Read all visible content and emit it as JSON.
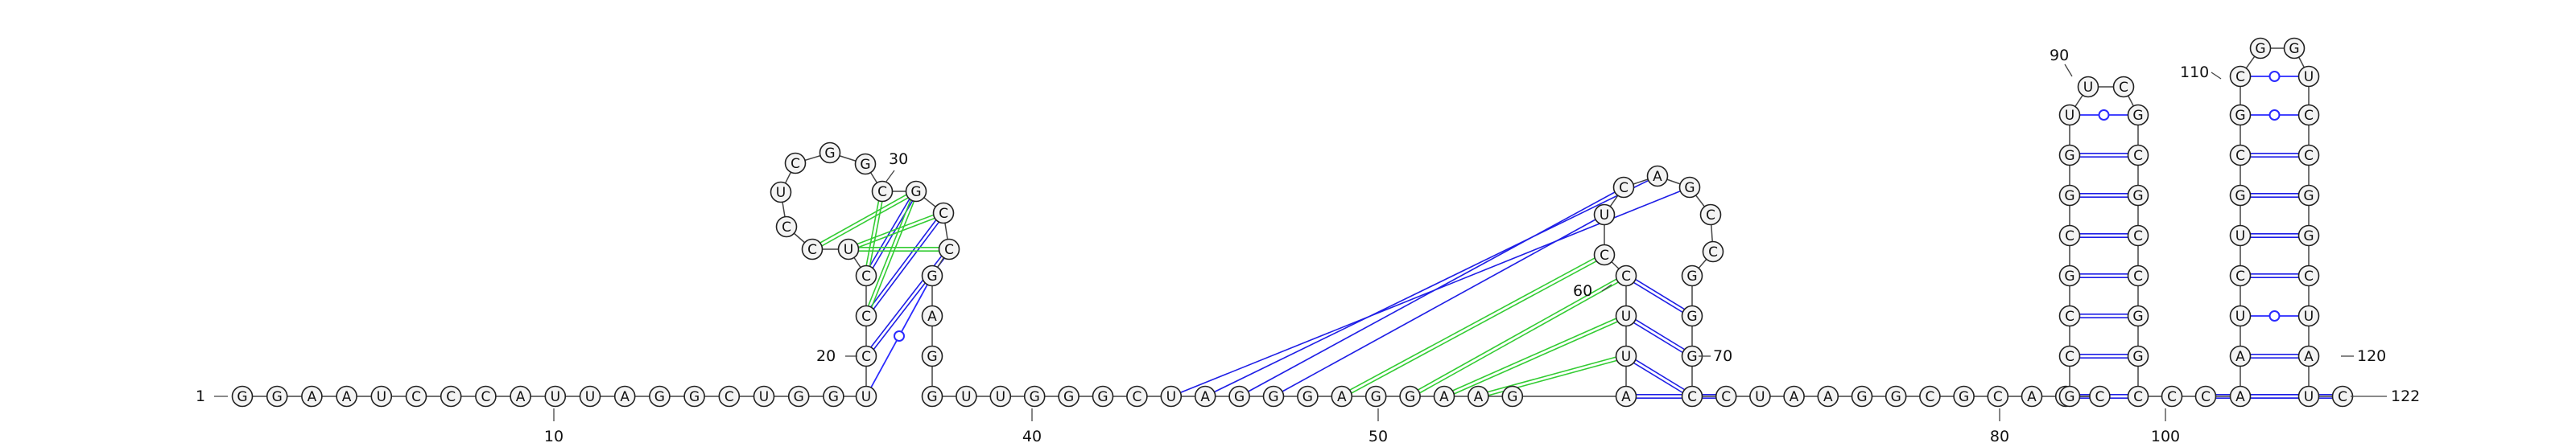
{
  "colors": {
    "canonical_pair": "#1e1ee6",
    "noncanonical_pair": "#2a2aff",
    "pseudoknot_pair": "#33cc33",
    "backbone": "#444444",
    "nucleotide_fill": "#f4f4f4"
  },
  "sequence": "GGAAUCCCAUUAGGCUGGUCCCUCCUCGGCGCCGAGGUUGGGCUAGGGAGGAAGAUUCCUCAGCCGGGCCUAAGGCGCAUCGCCGCGGUUCGCGCCGGCCCAAUCUGCGCGGUCCGGCUAUC",
  "position_labels": [
    "1",
    "10",
    "20",
    "30",
    "40",
    "50",
    "60",
    "70",
    "80",
    "90",
    "100",
    "110",
    "120",
    "122"
  ],
  "base_pairs": [
    {
      "i": 19,
      "j": 34,
      "type": "wobble"
    },
    {
      "i": 20,
      "j": 33,
      "type": "canonical"
    },
    {
      "i": 21,
      "j": 32,
      "type": "canonical"
    },
    {
      "i": 22,
      "j": 31,
      "type": "canonical"
    },
    {
      "i": 55,
      "j": 70,
      "type": "canonical"
    },
    {
      "i": 56,
      "j": 69,
      "type": "canonical"
    },
    {
      "i": 57,
      "j": 68,
      "type": "canonical"
    },
    {
      "i": 58,
      "j": 67,
      "type": "canonical"
    },
    {
      "i": 82,
      "j": 99,
      "type": "canonical"
    },
    {
      "i": 83,
      "j": 98,
      "type": "canonical"
    },
    {
      "i": 84,
      "j": 97,
      "type": "canonical"
    },
    {
      "i": 85,
      "j": 96,
      "type": "canonical"
    },
    {
      "i": 86,
      "j": 95,
      "type": "canonical"
    },
    {
      "i": 87,
      "j": 94,
      "type": "canonical"
    },
    {
      "i": 88,
      "j": 93,
      "type": "canonical"
    },
    {
      "i": 89,
      "j": 92,
      "type": "wobble"
    },
    {
      "i": 101,
      "j": 122,
      "type": "canonical"
    },
    {
      "i": 102,
      "j": 121,
      "type": "canonical"
    },
    {
      "i": 103,
      "j": 120,
      "type": "canonical"
    },
    {
      "i": 104,
      "j": 119,
      "type": "wobble"
    },
    {
      "i": 105,
      "j": 118,
      "type": "canonical"
    },
    {
      "i": 106,
      "j": 117,
      "type": "canonical"
    },
    {
      "i": 107,
      "j": 116,
      "type": "canonical"
    },
    {
      "i": 108,
      "j": 115,
      "type": "canonical"
    },
    {
      "i": 109,
      "j": 114,
      "type": "wobble"
    },
    {
      "i": 110,
      "j": 113,
      "type": "wobble"
    }
  ],
  "pseudoknot_pairs": [
    {
      "i": 21,
      "j": 31
    },
    {
      "i": 22,
      "j": 30
    },
    {
      "i": 23,
      "j": 33
    },
    {
      "i": 23,
      "j": 32
    },
    {
      "i": 24,
      "j": 31
    },
    {
      "i": 49,
      "j": 59
    },
    {
      "i": 51,
      "j": 58
    },
    {
      "i": 52,
      "j": 57
    },
    {
      "i": 53,
      "j": 56
    }
  ],
  "long_range_pairs": [
    {
      "i": 44,
      "j": 63
    },
    {
      "i": 45,
      "j": 62
    },
    {
      "i": 46,
      "j": 61
    },
    {
      "i": 47,
      "j": 60
    }
  ]
}
